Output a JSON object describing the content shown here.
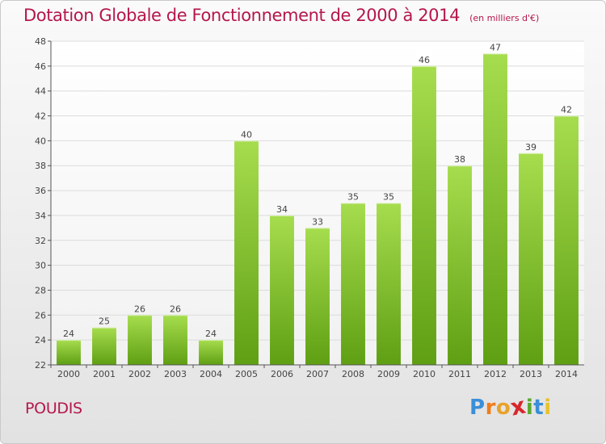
{
  "header": {
    "title": "Dotation Globale de Fonctionnement de 2000 à 2014",
    "subtitle": "(en milliers d'€)"
  },
  "footer": {
    "commune": "POUDIS",
    "logo_letters": [
      "P",
      "r",
      "o",
      "x",
      "i",
      "t",
      "i"
    ],
    "logo_colors": [
      "#3a8fd8",
      "#f07d1a",
      "#e9a22b",
      "#d8262b",
      "#5aa82f",
      "#3a8fd8",
      "#e9c22b"
    ]
  },
  "colors": {
    "bar_light": "#a6dd4e",
    "bar_dark": "#5f9f13",
    "axis": "#555555",
    "grid": "#dcdcdc",
    "text": "#444444",
    "accent": "#b5174a"
  },
  "chart_data": {
    "type": "bar",
    "categories": [
      "2000",
      "2001",
      "2002",
      "2003",
      "2004",
      "2005",
      "2006",
      "2007",
      "2008",
      "2009",
      "2010",
      "2011",
      "2012",
      "2013",
      "2014"
    ],
    "values": [
      24,
      25,
      26,
      26,
      24,
      40,
      34,
      33,
      35,
      35,
      46,
      38,
      47,
      39,
      42
    ],
    "ylim": [
      22,
      48
    ],
    "yticks": [
      22,
      24,
      26,
      28,
      30,
      32,
      34,
      36,
      38,
      40,
      42,
      44,
      46,
      48
    ],
    "title": "Dotation Globale de Fonctionnement de 2000 à 2014",
    "xlabel": "",
    "ylabel": "",
    "grid": true,
    "data_labels": true
  }
}
